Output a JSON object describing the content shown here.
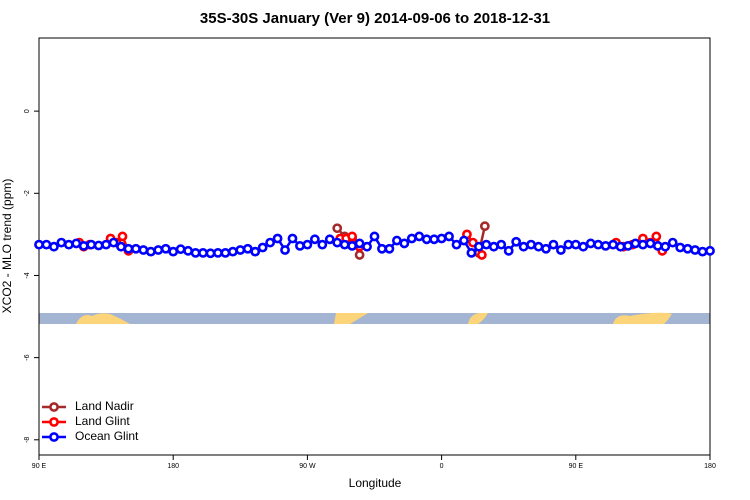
{
  "chart_data": {
    "type": "scatter",
    "title": "35S-30S January (Ver 9)   2014-09-06 to 2018-12-31",
    "x_label": "Longitude",
    "y_label": "XCO2 - MLO trend (ppm)",
    "xlim": [
      90,
      540
    ],
    "ylim": [
      -8.37,
      1.78
    ],
    "xticks": [
      {
        "value": 90,
        "label": "90 E"
      },
      180,
      {
        "value": 270,
        "label": "90 W"
      },
      {
        "value": 360,
        "label": "0"
      },
      {
        "value": 450,
        "label": "90 E"
      },
      {
        "value": 540,
        "label": "180"
      }
    ],
    "yticks": [
      -8,
      -6,
      -4,
      -2,
      0
    ],
    "legend": "bottom-left",
    "series": [
      {
        "name": "Land Nadir",
        "color": "#a52a2a",
        "x": [
          290,
          295,
          300,
          305,
          385,
          389
        ],
        "values": [
          -2.85,
          -3.05,
          -3.1,
          -3.5,
          -3.45,
          -2.8
        ]
      },
      {
        "name": "Land Glint",
        "color": "#ff0000",
        "x": [
          117,
          120,
          124,
          138,
          142,
          146,
          150,
          292,
          296,
          300,
          305,
          377,
          381,
          387,
          477,
          482,
          488,
          495,
          500,
          504,
          508
        ],
        "values": [
          -3.2,
          -3.3,
          -3.25,
          -3.1,
          -3.2,
          -3.05,
          -3.4,
          -3.1,
          -3.1,
          -3.05,
          -3.3,
          -3.0,
          -3.2,
          -3.5,
          -3.2,
          -3.3,
          -3.25,
          -3.1,
          -3.2,
          -3.05,
          -3.4
        ]
      },
      {
        "name": "Ocean Glint",
        "color": "#0000ff",
        "x": [
          90,
          95,
          100,
          105,
          110,
          115,
          120,
          125,
          130,
          135,
          140,
          145,
          150,
          155,
          160,
          165,
          170,
          175,
          180,
          185,
          190,
          195,
          200,
          205,
          210,
          215,
          220,
          225,
          230,
          235,
          240,
          245,
          250,
          255,
          260,
          265,
          270,
          275,
          280,
          285,
          290,
          295,
          300,
          305,
          310,
          315,
          320,
          325,
          330,
          335,
          340,
          345,
          350,
          355,
          360,
          365,
          370,
          375,
          380,
          385,
          390,
          395,
          400,
          405,
          410,
          415,
          420,
          425,
          430,
          435,
          440,
          445,
          450,
          455,
          460,
          465,
          470,
          475,
          480,
          485,
          490,
          495,
          500,
          505,
          510,
          515,
          520,
          525,
          530,
          535,
          540
        ],
        "values": [
          -3.25,
          -3.25,
          -3.3,
          -3.2,
          -3.25,
          -3.22,
          -3.28,
          -3.25,
          -3.27,
          -3.25,
          -3.2,
          -3.3,
          -3.35,
          -3.35,
          -3.38,
          -3.42,
          -3.38,
          -3.35,
          -3.42,
          -3.36,
          -3.4,
          -3.45,
          -3.45,
          -3.46,
          -3.45,
          -3.45,
          -3.42,
          -3.38,
          -3.35,
          -3.42,
          -3.32,
          -3.2,
          -3.1,
          -3.38,
          -3.1,
          -3.28,
          -3.25,
          -3.12,
          -3.25,
          -3.12,
          -3.2,
          -3.25,
          -3.28,
          -3.22,
          -3.3,
          -3.05,
          -3.35,
          -3.35,
          -3.15,
          -3.22,
          -3.1,
          -3.05,
          -3.12,
          -3.12,
          -3.1,
          -3.05,
          -3.25,
          -3.15,
          -3.45,
          -3.3,
          -3.25,
          -3.3,
          -3.25,
          -3.4,
          -3.18,
          -3.3,
          -3.25,
          -3.3,
          -3.35,
          -3.25,
          -3.38,
          -3.25,
          -3.25,
          -3.3,
          -3.22,
          -3.25,
          -3.28,
          -3.25,
          -3.3,
          -3.28,
          -3.22,
          -3.25,
          -3.22,
          -3.28,
          -3.3,
          -3.2,
          -3.32,
          -3.35,
          -3.38,
          -3.42,
          -3.4
        ]
      }
    ]
  }
}
